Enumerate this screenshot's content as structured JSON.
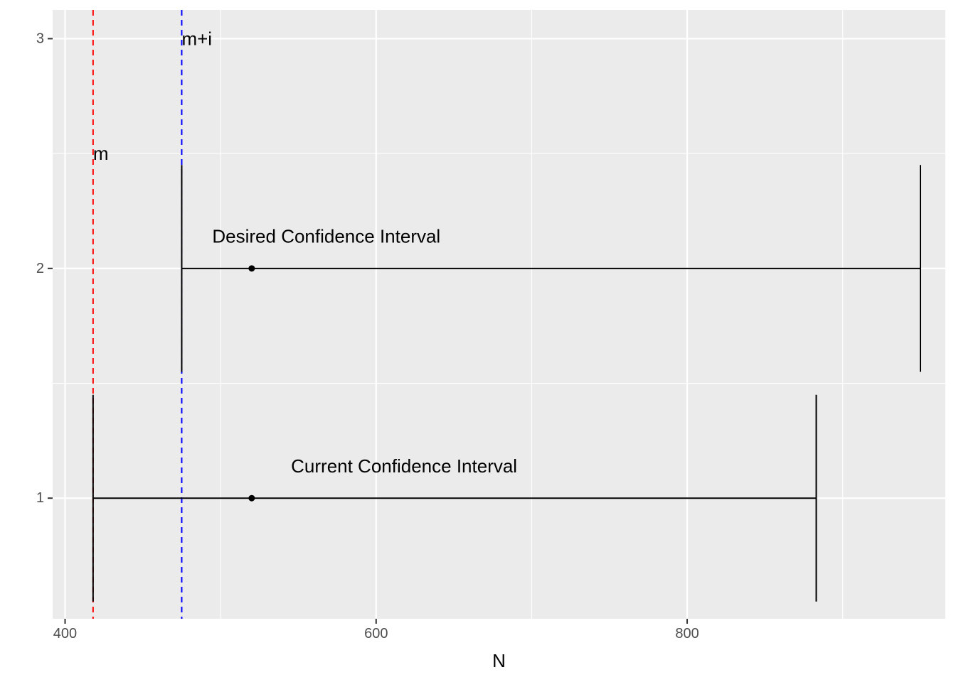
{
  "chart_data": {
    "type": "errorbar",
    "title": "",
    "xlabel": "N",
    "ylabel": "",
    "xlim": [
      392,
      966
    ],
    "ylim": [
      0.475,
      3.125
    ],
    "x_ticks": [
      400,
      600,
      800
    ],
    "x_minor_ticks": [
      500,
      700,
      900
    ],
    "y_ticks": [
      1,
      2,
      3
    ],
    "y_minor_ticks": [
      1.5,
      2.5
    ],
    "grid": true,
    "legend": "none",
    "intervals": [
      {
        "y": 1,
        "point": 520,
        "low": 418,
        "high": 883,
        "label": "Current Confidence Interval",
        "label_x": 618,
        "label_y": 1.14
      },
      {
        "y": 2,
        "point": 520,
        "low": 475,
        "high": 950,
        "label": "Desired Confidence Interval",
        "label_x": 568,
        "label_y": 2.14
      }
    ],
    "reference_lines": [
      {
        "x": 418,
        "label": "m",
        "label_y": 2.5,
        "color": "#ff0000",
        "style": "dashed"
      },
      {
        "x": 475,
        "label": "m+i",
        "label_y": 3.0,
        "color": "#0000ff",
        "style": "dashed"
      }
    ]
  },
  "colors": {
    "panel_background": "#ebebeb",
    "grid_major": "#ffffff",
    "interval": "#000000"
  }
}
